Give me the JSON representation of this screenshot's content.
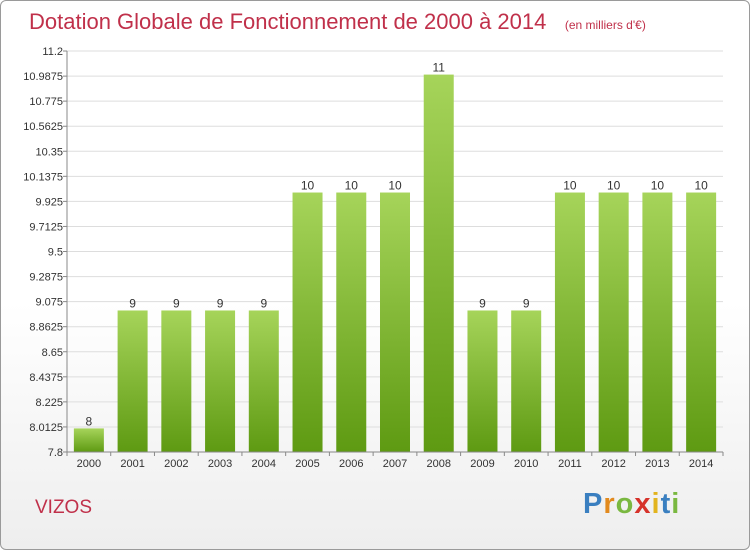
{
  "title": "Dotation Globale de Fonctionnement de 2000 à 2014",
  "subtitle": "(en milliers d'€)",
  "commune": "VIZOS",
  "logo": {
    "letters": [
      {
        "ch": "P",
        "color": "#3a7fc0"
      },
      {
        "ch": "r",
        "color": "#e28a1e"
      },
      {
        "ch": "o",
        "color": "#7ab840"
      },
      {
        "ch": "x",
        "color": "#d6322a"
      },
      {
        "ch": "i",
        "color": "#e2b41e"
      },
      {
        "ch": "t",
        "color": "#3a7fc0"
      },
      {
        "ch": "i",
        "color": "#7ab840"
      }
    ]
  },
  "colors": {
    "bar_top": "#a6d45a",
    "bar_bottom": "#5e9a12",
    "grid": "#dddddd",
    "axis": "#888888",
    "title": "#c0304a"
  },
  "chart_data": {
    "type": "bar",
    "title": "Dotation Globale de Fonctionnement de 2000 à 2014",
    "subtitle": "(en milliers d'€)",
    "xlabel": "",
    "ylabel": "",
    "categories": [
      "2000",
      "2001",
      "2002",
      "2003",
      "2004",
      "2005",
      "2006",
      "2007",
      "2008",
      "2009",
      "2010",
      "2011",
      "2012",
      "2013",
      "2014"
    ],
    "values": [
      8,
      9,
      9,
      9,
      9,
      10,
      10,
      10,
      11,
      9,
      9,
      10,
      10,
      10,
      10
    ],
    "data_labels": [
      "8",
      "9",
      "9",
      "9",
      "9",
      "10",
      "10",
      "10",
      "11",
      "9",
      "9",
      "10",
      "10",
      "10",
      "10"
    ],
    "ylim": [
      7.8,
      11.2
    ],
    "yticks": [
      "7.8",
      "8.0125",
      "8.225",
      "8.4375",
      "8.65",
      "8.8625",
      "9.075",
      "9.2875",
      "9.5",
      "9.7125",
      "9.925",
      "10.1375",
      "10.35",
      "10.5625",
      "10.775",
      "10.9875",
      "11.2"
    ],
    "grid": true,
    "legend": "none"
  }
}
